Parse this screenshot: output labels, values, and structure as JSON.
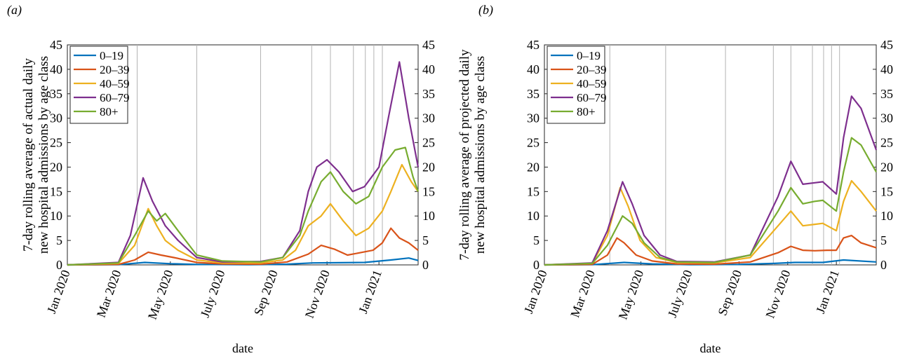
{
  "chart_data": [
    {
      "type": "line",
      "panel_label": "(a)",
      "xlabel": "date",
      "ylabel_lines": [
        "7-day rolling average of actual daily",
        "new hospital admissions by age class"
      ],
      "x_ticks": [
        "Jan 2020",
        "Mar 2020",
        "May 2020",
        "July 2020",
        "Sep 2020",
        "Nov 2020",
        "Jan 2021"
      ],
      "y_ticks": [
        "0",
        "5",
        "10",
        "15",
        "20",
        "25",
        "30",
        "35",
        "40",
        "45"
      ],
      "ylim": [
        0,
        45
      ],
      "vertical_lines": [
        "2020-03-23",
        "2020-06-01",
        "2020-08-15",
        "2020-10-14",
        "2020-11-05",
        "2020-12-02",
        "2020-12-16",
        "2020-12-26",
        "2021-01-05"
      ],
      "legend_position": "top-left",
      "series": [
        {
          "name": "0–19",
          "color": "#0072bd",
          "points": [
            [
              "2020-01-01",
              0
            ],
            [
              "2020-03-01",
              0.05
            ],
            [
              "2020-04-01",
              0.5
            ],
            [
              "2020-05-01",
              0.25
            ],
            [
              "2020-06-01",
              0.1
            ],
            [
              "2020-08-01",
              0.05
            ],
            [
              "2020-09-15",
              0.15
            ],
            [
              "2020-10-15",
              0.4
            ],
            [
              "2020-11-15",
              0.45
            ],
            [
              "2020-12-15",
              0.5
            ],
            [
              "2021-01-15",
              1.0
            ],
            [
              "2021-02-05",
              1.4
            ],
            [
              "2021-02-16",
              0.9
            ]
          ]
        },
        {
          "name": "20–39",
          "color": "#d95319",
          "points": [
            [
              "2020-01-01",
              0
            ],
            [
              "2020-03-01",
              0.1
            ],
            [
              "2020-03-20",
              1.0
            ],
            [
              "2020-04-05",
              2.6
            ],
            [
              "2020-04-20",
              2.0
            ],
            [
              "2020-05-05",
              1.5
            ],
            [
              "2020-06-01",
              0.5
            ],
            [
              "2020-07-01",
              0.2
            ],
            [
              "2020-08-15",
              0.15
            ],
            [
              "2020-09-15",
              0.6
            ],
            [
              "2020-10-10",
              2.2
            ],
            [
              "2020-10-25",
              4.0
            ],
            [
              "2020-11-10",
              3.2
            ],
            [
              "2020-11-25",
              2.0
            ],
            [
              "2020-12-10",
              2.5
            ],
            [
              "2020-12-25",
              3.0
            ],
            [
              "2021-01-05",
              4.5
            ],
            [
              "2021-01-15",
              7.5
            ],
            [
              "2021-01-25",
              5.5
            ],
            [
              "2021-02-05",
              4.5
            ],
            [
              "2021-02-16",
              3.0
            ]
          ]
        },
        {
          "name": "40–59",
          "color": "#edb120",
          "points": [
            [
              "2020-01-01",
              0
            ],
            [
              "2020-03-01",
              0.3
            ],
            [
              "2020-03-20",
              4.0
            ],
            [
              "2020-04-05",
              11.5
            ],
            [
              "2020-04-15",
              8.0
            ],
            [
              "2020-04-25",
              5.0
            ],
            [
              "2020-05-10",
              3.0
            ],
            [
              "2020-06-01",
              1.0
            ],
            [
              "2020-07-01",
              0.4
            ],
            [
              "2020-08-15",
              0.4
            ],
            [
              "2020-09-10",
              1.0
            ],
            [
              "2020-09-25",
              3.0
            ],
            [
              "2020-10-10",
              8.0
            ],
            [
              "2020-10-25",
              10.0
            ],
            [
              "2020-11-05",
              12.5
            ],
            [
              "2020-11-20",
              9.0
            ],
            [
              "2020-12-05",
              6.0
            ],
            [
              "2020-12-20",
              7.5
            ],
            [
              "2021-01-05",
              11.0
            ],
            [
              "2021-01-15",
              15.0
            ],
            [
              "2021-01-28",
              20.5
            ],
            [
              "2021-02-08",
              17.0
            ],
            [
              "2021-02-16",
              15.0
            ]
          ]
        },
        {
          "name": "60–79",
          "color": "#7e2f8e",
          "points": [
            [
              "2020-01-01",
              0
            ],
            [
              "2020-03-01",
              0.5
            ],
            [
              "2020-03-15",
              6.0
            ],
            [
              "2020-03-30",
              17.8
            ],
            [
              "2020-04-10",
              13.0
            ],
            [
              "2020-04-25",
              8.0
            ],
            [
              "2020-05-10",
              5.0
            ],
            [
              "2020-06-01",
              1.5
            ],
            [
              "2020-07-01",
              0.6
            ],
            [
              "2020-08-15",
              0.7
            ],
            [
              "2020-09-10",
              1.5
            ],
            [
              "2020-09-30",
              7.0
            ],
            [
              "2020-10-10",
              15.0
            ],
            [
              "2020-10-20",
              20.0
            ],
            [
              "2020-11-01",
              21.5
            ],
            [
              "2020-11-15",
              19.0
            ],
            [
              "2020-12-01",
              15.0
            ],
            [
              "2020-12-15",
              16.0
            ],
            [
              "2021-01-01",
              20.0
            ],
            [
              "2021-01-12",
              30.0
            ],
            [
              "2021-01-25",
              41.5
            ],
            [
              "2021-02-05",
              30.0
            ],
            [
              "2021-02-16",
              20.0
            ]
          ]
        },
        {
          "name": "80+",
          "color": "#77ac30",
          "points": [
            [
              "2020-01-01",
              0
            ],
            [
              "2020-03-01",
              0.4
            ],
            [
              "2020-03-20",
              6.0
            ],
            [
              "2020-04-05",
              11.0
            ],
            [
              "2020-04-15",
              9.0
            ],
            [
              "2020-04-25",
              10.5
            ],
            [
              "2020-05-10",
              7.0
            ],
            [
              "2020-06-01",
              2.0
            ],
            [
              "2020-07-01",
              0.8
            ],
            [
              "2020-08-15",
              0.6
            ],
            [
              "2020-09-10",
              1.5
            ],
            [
              "2020-09-30",
              6.0
            ],
            [
              "2020-10-10",
              11.0
            ],
            [
              "2020-10-25",
              17.0
            ],
            [
              "2020-11-05",
              19.0
            ],
            [
              "2020-11-20",
              15.0
            ],
            [
              "2020-12-05",
              12.5
            ],
            [
              "2020-12-20",
              14.0
            ],
            [
              "2021-01-05",
              20.0
            ],
            [
              "2021-01-20",
              23.5
            ],
            [
              "2021-02-01",
              24.0
            ],
            [
              "2021-02-10",
              18.0
            ],
            [
              "2021-02-16",
              15.0
            ]
          ]
        }
      ]
    },
    {
      "type": "line",
      "panel_label": "(b)",
      "xlabel": "date",
      "ylabel_lines": [
        "7-day rolling average of projected daily",
        "new hospital admissions by age class"
      ],
      "x_ticks": [
        "Jan 2020",
        "Mar 2020",
        "May 2020",
        "July 2020",
        "Sep 2020",
        "Nov 2020",
        "Jan 2021"
      ],
      "y_ticks": [
        "0",
        "5",
        "10",
        "15",
        "20",
        "25",
        "30",
        "35",
        "40",
        "45"
      ],
      "ylim": [
        0,
        45
      ],
      "vertical_lines": [
        "2020-03-23",
        "2020-06-01",
        "2020-08-15",
        "2020-10-14",
        "2020-11-05",
        "2020-12-02",
        "2020-12-16",
        "2020-12-26",
        "2021-01-05"
      ],
      "legend_position": "top-left",
      "series": [
        {
          "name": "0–19",
          "color": "#0072bd",
          "points": [
            [
              "2020-01-01",
              0
            ],
            [
              "2020-03-01",
              0.05
            ],
            [
              "2020-04-10",
              0.5
            ],
            [
              "2020-05-15",
              0.2
            ],
            [
              "2020-07-01",
              0.05
            ],
            [
              "2020-09-01",
              0.1
            ],
            [
              "2020-10-15",
              0.3
            ],
            [
              "2020-11-10",
              0.5
            ],
            [
              "2020-12-15",
              0.5
            ],
            [
              "2021-01-10",
              1.0
            ],
            [
              "2021-02-20",
              0.6
            ]
          ]
        },
        {
          "name": "20–39",
          "color": "#d95319",
          "points": [
            [
              "2020-01-01",
              0
            ],
            [
              "2020-03-01",
              0.1
            ],
            [
              "2020-03-20",
              2.0
            ],
            [
              "2020-04-01",
              5.5
            ],
            [
              "2020-04-10",
              4.5
            ],
            [
              "2020-04-25",
              2.0
            ],
            [
              "2020-05-15",
              0.8
            ],
            [
              "2020-06-15",
              0.2
            ],
            [
              "2020-08-01",
              0.15
            ],
            [
              "2020-09-15",
              0.6
            ],
            [
              "2020-10-20",
              2.5
            ],
            [
              "2020-11-05",
              3.8
            ],
            [
              "2020-11-20",
              3.0
            ],
            [
              "2020-12-05",
              2.9
            ],
            [
              "2020-12-20",
              3.0
            ],
            [
              "2021-01-01",
              3.0
            ],
            [
              "2021-01-10",
              5.5
            ],
            [
              "2021-01-20",
              6.0
            ],
            [
              "2021-02-01",
              4.5
            ],
            [
              "2021-02-20",
              3.5
            ]
          ]
        },
        {
          "name": "40–59",
          "color": "#edb120",
          "points": [
            [
              "2020-01-01",
              0
            ],
            [
              "2020-03-01",
              0.3
            ],
            [
              "2020-03-20",
              6.0
            ],
            [
              "2020-04-05",
              15.8
            ],
            [
              "2020-04-15",
              12.0
            ],
            [
              "2020-04-30",
              5.0
            ],
            [
              "2020-05-20",
              1.5
            ],
            [
              "2020-06-15",
              0.5
            ],
            [
              "2020-08-01",
              0.4
            ],
            [
              "2020-09-15",
              1.5
            ],
            [
              "2020-10-20",
              8.0
            ],
            [
              "2020-11-05",
              11.0
            ],
            [
              "2020-11-20",
              8.0
            ],
            [
              "2020-12-05",
              8.3
            ],
            [
              "2020-12-15",
              8.5
            ],
            [
              "2021-01-01",
              7.0
            ],
            [
              "2021-01-10",
              13.0
            ],
            [
              "2021-01-20",
              17.2
            ],
            [
              "2021-02-01",
              15.0
            ],
            [
              "2021-02-20",
              11.0
            ]
          ]
        },
        {
          "name": "60–79",
          "color": "#7e2f8e",
          "points": [
            [
              "2020-01-01",
              0
            ],
            [
              "2020-03-01",
              0.4
            ],
            [
              "2020-03-20",
              7.0
            ],
            [
              "2020-04-08",
              17.0
            ],
            [
              "2020-04-20",
              12.5
            ],
            [
              "2020-05-05",
              6.0
            ],
            [
              "2020-05-25",
              2.0
            ],
            [
              "2020-06-15",
              0.7
            ],
            [
              "2020-08-01",
              0.6
            ],
            [
              "2020-09-15",
              2.0
            ],
            [
              "2020-10-20",
              14.0
            ],
            [
              "2020-11-05",
              21.2
            ],
            [
              "2020-11-20",
              16.5
            ],
            [
              "2020-12-05",
              16.8
            ],
            [
              "2020-12-15",
              17.0
            ],
            [
              "2021-01-01",
              14.5
            ],
            [
              "2021-01-10",
              26.0
            ],
            [
              "2021-01-20",
              34.5
            ],
            [
              "2021-02-01",
              32.0
            ],
            [
              "2021-02-20",
              23.5
            ]
          ]
        },
        {
          "name": "80+",
          "color": "#77ac30",
          "points": [
            [
              "2020-01-01",
              0
            ],
            [
              "2020-03-01",
              0.3
            ],
            [
              "2020-03-20",
              4.0
            ],
            [
              "2020-04-08",
              10.0
            ],
            [
              "2020-04-20",
              8.5
            ],
            [
              "2020-05-05",
              4.5
            ],
            [
              "2020-05-25",
              1.5
            ],
            [
              "2020-06-15",
              0.6
            ],
            [
              "2020-08-01",
              0.5
            ],
            [
              "2020-09-15",
              2.0
            ],
            [
              "2020-10-20",
              11.0
            ],
            [
              "2020-11-05",
              15.8
            ],
            [
              "2020-11-20",
              12.5
            ],
            [
              "2020-12-05",
              13.0
            ],
            [
              "2020-12-15",
              13.2
            ],
            [
              "2021-01-01",
              11.0
            ],
            [
              "2021-01-10",
              19.0
            ],
            [
              "2021-01-20",
              26.0
            ],
            [
              "2021-02-01",
              24.5
            ],
            [
              "2021-02-20",
              19.0
            ]
          ]
        }
      ]
    }
  ]
}
